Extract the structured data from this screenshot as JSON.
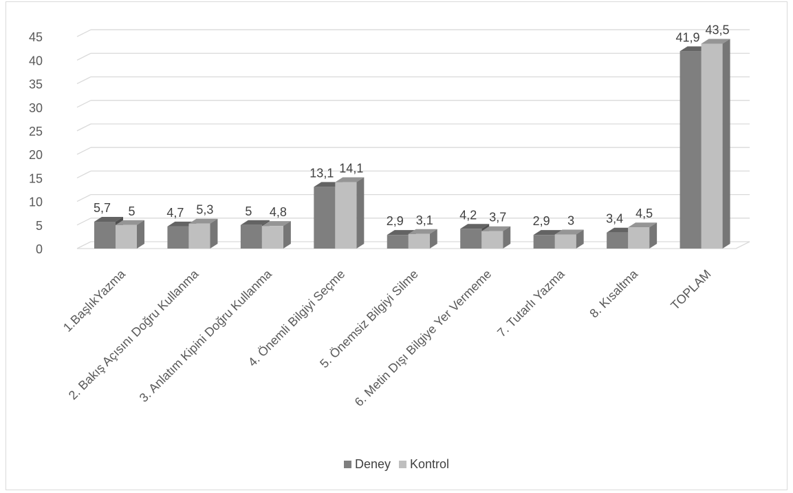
{
  "chart_data": {
    "type": "bar",
    "categories": [
      "1.BaşlıkYazma",
      "2. Bakış Açısını Doğru Kullanma",
      "3. Anlatım Kipini Doğru Kullanma",
      "4. Önemli Bilgiyi Seçme",
      "5. Önemsiz Bilgiyi Silme",
      "6. Metin Dışı Bilgiye Yer Vermeme",
      "7. Tutarlı Yazma",
      "8. Kısaltma",
      "TOPLAM"
    ],
    "series": [
      {
        "name": "Deney",
        "color": "#7f7f7f",
        "values": [
          5.7,
          4.7,
          5,
          13.1,
          2.9,
          4.2,
          2.9,
          3.4,
          41.9
        ],
        "labels": [
          "5,7",
          "4,7",
          "5",
          "13,1",
          "2,9",
          "4,2",
          "2,9",
          "3,4",
          "41,9"
        ]
      },
      {
        "name": "Kontrol",
        "color": "#bfbfbf",
        "values": [
          5,
          5.3,
          4.8,
          14.1,
          3.1,
          3.7,
          3,
          4.5,
          43.5
        ],
        "labels": [
          "5",
          "5,3",
          "4,8",
          "14,1",
          "3,1",
          "3,7",
          "3",
          "4,5",
          "43,5"
        ]
      }
    ],
    "ylim": [
      0,
      45
    ],
    "yticks": [
      0,
      5,
      10,
      15,
      20,
      25,
      30,
      35,
      40,
      45
    ],
    "grid": true,
    "legend": "bottom",
    "style": "3d-clustered-column"
  }
}
